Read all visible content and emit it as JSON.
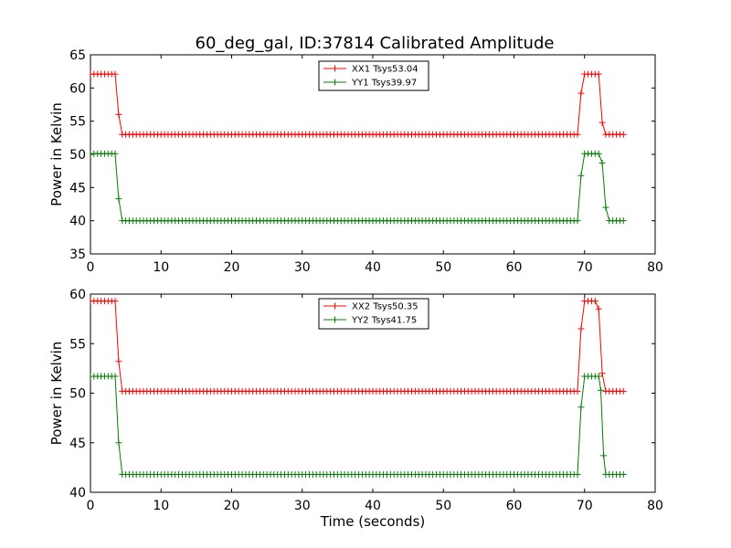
{
  "figure": {
    "title": "60_deg_gal, ID:37814 Calibrated Amplitude"
  },
  "chart_data": [
    {
      "type": "line",
      "title": "60_deg_gal, ID:37814 Calibrated Amplitude",
      "xlabel": "",
      "ylabel": "Power in Kelvin",
      "xlim": [
        0,
        80
      ],
      "ylim": [
        35,
        65
      ],
      "xticks": [
        0,
        10,
        20,
        30,
        40,
        50,
        60,
        70,
        80
      ],
      "yticks": [
        35,
        40,
        45,
        50,
        55,
        60,
        65
      ],
      "grid": false,
      "legend_position": "top-center",
      "markers": "+",
      "sample_step": 0.5,
      "series": [
        {
          "name": "XX1 Tsys53.04",
          "color": "#ff0000",
          "segments": [
            {
              "x0": 0,
              "x1": 3.5,
              "value": 62.1
            },
            {
              "x": 4.0,
              "value": 56.0
            },
            {
              "x0": 4.5,
              "x1": 69.0,
              "value": 53.0
            },
            {
              "x": 69.5,
              "value": 59.2
            },
            {
              "x0": 70.0,
              "x1": 72.0,
              "value": 62.1
            },
            {
              "x": 72.5,
              "value": 54.8
            },
            {
              "x0": 73.0,
              "x1": 75.5,
              "value": 53.0
            }
          ]
        },
        {
          "name": "YY1 Tsys39.97",
          "color": "#008000",
          "segments": [
            {
              "x0": 0,
              "x1": 3.5,
              "value": 50.1
            },
            {
              "x": 4.0,
              "value": 43.3
            },
            {
              "x0": 4.5,
              "x1": 69.0,
              "value": 40.0
            },
            {
              "x": 69.5,
              "value": 46.8
            },
            {
              "x0": 70.0,
              "x1": 72.0,
              "value": 50.1
            },
            {
              "x": 72.5,
              "value": 48.7
            },
            {
              "x": 73.0,
              "value": 42.0
            },
            {
              "x0": 73.5,
              "x1": 75.5,
              "value": 40.0
            }
          ]
        }
      ]
    },
    {
      "type": "line",
      "title": "",
      "xlabel": "Time (seconds)",
      "ylabel": "Power in Kelvin",
      "xlim": [
        0,
        80
      ],
      "ylim": [
        40,
        60
      ],
      "xticks": [
        0,
        10,
        20,
        30,
        40,
        50,
        60,
        70,
        80
      ],
      "yticks": [
        40,
        45,
        50,
        55,
        60
      ],
      "grid": false,
      "legend_position": "top-center",
      "markers": "+",
      "sample_step": 0.5,
      "series": [
        {
          "name": "XX2 Tsys50.35",
          "color": "#ff0000",
          "segments": [
            {
              "x0": 0,
              "x1": 3.5,
              "value": 59.3
            },
            {
              "x": 4.0,
              "value": 53.2
            },
            {
              "x0": 4.5,
              "x1": 69.0,
              "value": 50.2
            },
            {
              "x": 69.5,
              "value": 56.5
            },
            {
              "x0": 70.0,
              "x1": 71.5,
              "value": 59.3
            },
            {
              "x": 72.0,
              "value": 58.5
            },
            {
              "x": 72.5,
              "value": 52.0
            },
            {
              "x0": 73.0,
              "x1": 75.5,
              "value": 50.2
            }
          ]
        },
        {
          "name": "YY2 Tsys41.75",
          "color": "#008000",
          "segments": [
            {
              "x0": 0,
              "x1": 3.5,
              "value": 51.7
            },
            {
              "x": 4.0,
              "value": 45.0
            },
            {
              "x0": 4.5,
              "x1": 69.0,
              "value": 41.8
            },
            {
              "x": 69.5,
              "value": 48.6
            },
            {
              "x0": 70.0,
              "x1": 72.0,
              "value": 51.7
            },
            {
              "x": 72.3,
              "value": 50.3
            },
            {
              "x": 72.7,
              "value": 43.7
            },
            {
              "x0": 73.0,
              "x1": 75.5,
              "value": 41.8
            }
          ]
        }
      ]
    }
  ]
}
